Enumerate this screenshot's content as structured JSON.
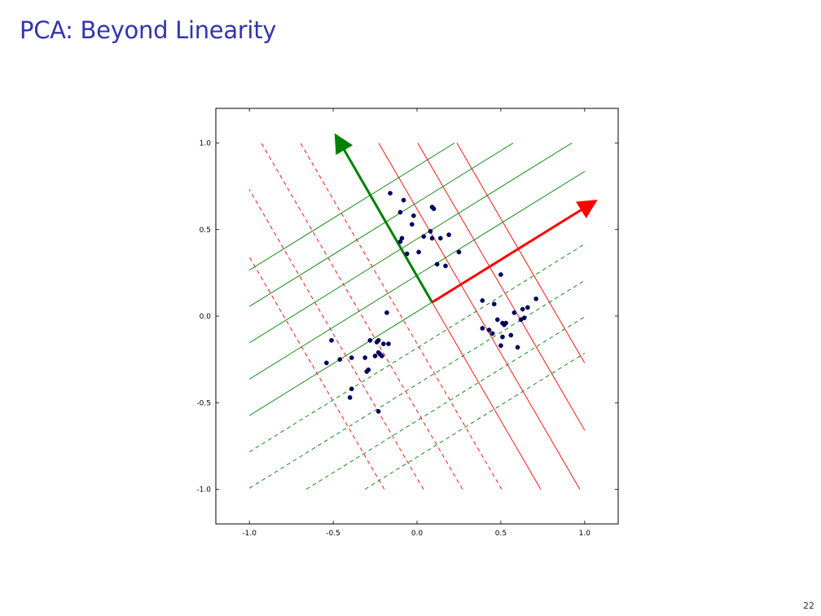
{
  "slide": {
    "title": "PCA: Beyond Linearity",
    "page_number": "22"
  },
  "colors": {
    "title": "#3333b2",
    "pc1_arrow": "#ff0000",
    "pc2_arrow": "#008000",
    "contour_red": "#ff0000",
    "contour_green": "#008000",
    "points": "#00006b"
  },
  "chart_data": {
    "type": "scatter",
    "title": "",
    "xlabel": "",
    "ylabel": "",
    "xlim": [
      -1.2,
      1.2
    ],
    "ylim": [
      -1.2,
      1.2
    ],
    "xticks": [
      "-1.0",
      "-0.5",
      "0.0",
      "0.5",
      "1.0"
    ],
    "yticks": [
      "-1.0",
      "-0.5",
      "0.0",
      "0.5",
      "1.0"
    ],
    "xtick_values": [
      -1.0,
      -0.5,
      0.0,
      0.5,
      1.0
    ],
    "ytick_values": [
      -1.0,
      -0.5,
      0.0,
      0.5,
      1.0
    ],
    "grid": false,
    "points": [
      [
        -0.54,
        -0.27
      ],
      [
        -0.51,
        -0.14
      ],
      [
        -0.46,
        -0.25
      ],
      [
        -0.39,
        -0.24
      ],
      [
        -0.39,
        -0.42
      ],
      [
        -0.4,
        -0.47
      ],
      [
        -0.31,
        -0.24
      ],
      [
        -0.3,
        -0.32
      ],
      [
        -0.29,
        -0.31
      ],
      [
        -0.28,
        -0.14
      ],
      [
        -0.25,
        -0.23
      ],
      [
        -0.24,
        -0.15
      ],
      [
        -0.23,
        -0.14
      ],
      [
        -0.23,
        -0.21
      ],
      [
        -0.22,
        -0.22
      ],
      [
        -0.21,
        -0.23
      ],
      [
        -0.2,
        -0.16
      ],
      [
        -0.17,
        -0.16
      ],
      [
        -0.23,
        -0.55
      ],
      [
        -0.18,
        0.02
      ],
      [
        -0.16,
        0.71
      ],
      [
        -0.08,
        0.67
      ],
      [
        -0.1,
        0.6
      ],
      [
        -0.02,
        0.58
      ],
      [
        -0.03,
        0.53
      ],
      [
        0.09,
        0.63
      ],
      [
        0.1,
        0.62
      ],
      [
        -0.1,
        0.43
      ],
      [
        -0.09,
        0.45
      ],
      [
        -0.06,
        0.36
      ],
      [
        0.01,
        0.37
      ],
      [
        0.04,
        0.46
      ],
      [
        0.08,
        0.49
      ],
      [
        0.09,
        0.45
      ],
      [
        0.14,
        0.45
      ],
      [
        0.19,
        0.47
      ],
      [
        0.25,
        0.37
      ],
      [
        0.12,
        0.3
      ],
      [
        0.17,
        0.29
      ],
      [
        0.5,
        0.24
      ],
      [
        0.39,
        0.09
      ],
      [
        0.46,
        0.07
      ],
      [
        0.71,
        0.1
      ],
      [
        0.66,
        0.05
      ],
      [
        0.63,
        0.04
      ],
      [
        0.58,
        0.02
      ],
      [
        0.64,
        -0.01
      ],
      [
        0.62,
        -0.02
      ],
      [
        0.48,
        -0.02
      ],
      [
        0.51,
        -0.04
      ],
      [
        0.52,
        -0.05
      ],
      [
        0.53,
        -0.04
      ],
      [
        0.39,
        -0.07
      ],
      [
        0.43,
        -0.08
      ],
      [
        0.45,
        -0.1
      ],
      [
        0.56,
        -0.11
      ],
      [
        0.51,
        -0.12
      ],
      [
        0.5,
        -0.17
      ],
      [
        0.6,
        -0.18
      ]
    ],
    "principal_axes": {
      "origin": [
        0.09,
        0.08
      ],
      "pc1_end": [
        1.04,
        0.65
      ],
      "pc2_end": [
        -0.47,
        1.02
      ]
    }
  }
}
